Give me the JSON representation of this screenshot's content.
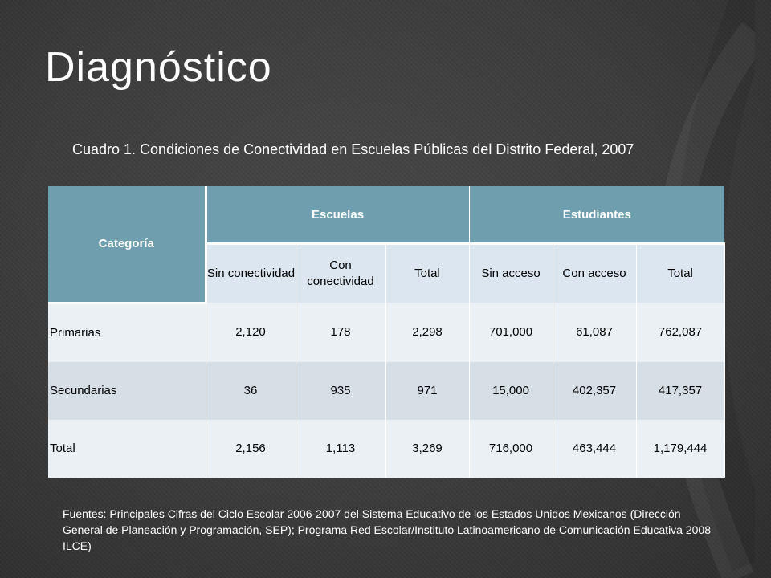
{
  "slide": {
    "title": "Diagnóstico",
    "caption": "Cuadro 1. Condiciones  de Conectividad en Escuelas Públicas del Distrito Federal, 2007",
    "footnote": "Fuentes: Principales Cifras del Ciclo Escolar 2006-2007 del Sistema Educativo de los Estados Unidos Mexicanos (Dirección General de Planeación y Programación, SEP); Programa Red Escolar/Instituto Latinoamericano de Comunicación Educativa 2008 ILCE)"
  },
  "table": {
    "category_header": "Categoría",
    "groups": [
      "Escuelas",
      "Estudiantes"
    ],
    "subheaders": [
      "Sin conectividad",
      "Con conectividad",
      "Total",
      "Sin acceso",
      "Con acceso",
      "Total"
    ],
    "rows": [
      {
        "label": "Primarias",
        "values": [
          "2,120",
          "178",
          "2,298",
          "701,000",
          "61,087",
          "762,087"
        ]
      },
      {
        "label": "Secundarias",
        "values": [
          "36",
          "935",
          "971",
          "15,000",
          "402,357",
          "417,357"
        ]
      },
      {
        "label": "Total",
        "values": [
          "2,156",
          "1,113",
          "3,269",
          "716,000",
          "463,444",
          "1,179,444"
        ]
      }
    ]
  },
  "colors": {
    "background": "#3d3d3d",
    "header": "#6f9faf",
    "subheader": "#dce6f0",
    "row_light": "#eaf0f4",
    "row_dark": "#d6dee6"
  }
}
